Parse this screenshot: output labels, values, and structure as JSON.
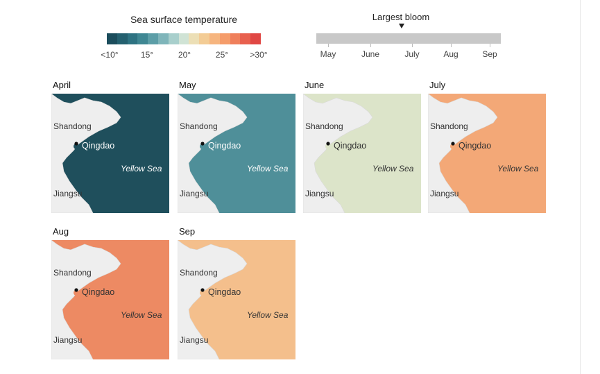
{
  "legend": {
    "title": "Sea surface temperature",
    "ticks": [
      "<10°",
      "15°",
      "20°",
      "25°",
      ">30°"
    ],
    "colors": [
      "#1b4d5c",
      "#24606f",
      "#2e7382",
      "#3f8793",
      "#5c9ea7",
      "#7fb5ba",
      "#a8cfcc",
      "#d0e3d5",
      "#ecdfb6",
      "#f3cc95",
      "#f6b57f",
      "#f59c6a",
      "#ef7f5b",
      "#e8604e",
      "#e04744"
    ]
  },
  "bloom": {
    "title": "Largest bloom",
    "months": [
      "May",
      "June",
      "July",
      "Aug",
      "Sep"
    ],
    "peak": "July"
  },
  "panels": [
    {
      "month": "April",
      "sea": "#1f4f5c",
      "land": "#eeeeee"
    },
    {
      "month": "May",
      "sea": "#4f8f99",
      "land": "#eeeeee"
    },
    {
      "month": "June",
      "sea": "#dce4c9",
      "land": "#eeeeee"
    },
    {
      "month": "July",
      "sea": "#f3a877",
      "land": "#eeeeee"
    },
    {
      "month": "Aug",
      "sea": "#ed8a63",
      "land": "#eeeeee"
    },
    {
      "month": "Sep",
      "sea": "#f4bf8c",
      "land": "#eeeeee"
    }
  ],
  "labels": {
    "province_north": "Shandong",
    "province_south": "Jiangsu",
    "city": "Qingdao",
    "sea": "Yellow Sea"
  }
}
